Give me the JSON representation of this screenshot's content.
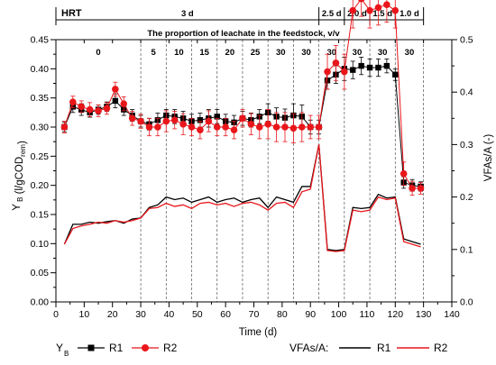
{
  "chart_data": {
    "type": "scatter",
    "title": "The proportion of leachate in the feedstock, v/v",
    "xlabel": "Time (d)",
    "ylabel_left": "Y_B (l/gCOD_rem)",
    "ylabel_left_parts": {
      "y": "Y",
      "sub": "B",
      "mid": "(l/gCOD",
      "sub2": "rem",
      "end": ")"
    },
    "ylabel_right": "VFAs/A (-)",
    "xlim": [
      0,
      140
    ],
    "ylim_left": [
      0.0,
      0.45
    ],
    "ylim_right": [
      0.0,
      0.5
    ],
    "x_ticks": [
      "0",
      "10",
      "20",
      "30",
      "40",
      "50",
      "60",
      "70",
      "80",
      "90",
      "100",
      "110",
      "120",
      "130",
      "140"
    ],
    "y_ticks_left": [
      "0.00",
      "0.05",
      "0.10",
      "0.15",
      "0.20",
      "0.25",
      "0.30",
      "0.35",
      "0.40",
      "0.45"
    ],
    "y_ticks_right": [
      "0.0",
      "0.1",
      "0.2",
      "0.3",
      "0.4",
      "0.5"
    ],
    "hrt": {
      "label": "HRT",
      "boundaries": [
        0,
        93,
        102,
        111,
        120,
        130
      ],
      "segments": [
        {
          "label": "3 d",
          "x": 46.5
        },
        {
          "label": "2.5 d",
          "x": 97.5
        },
        {
          "label": "2.0 d",
          "x": 106.5
        },
        {
          "label": "1.5 d",
          "x": 115.5
        },
        {
          "label": "1.0 d",
          "x": 125
        }
      ]
    },
    "leachate_boundaries": [
      30,
      39,
      48,
      57,
      66,
      75,
      84,
      93,
      102,
      111,
      120,
      130
    ],
    "leachate_labels": [
      {
        "label": "0",
        "x": 15
      },
      {
        "label": "5",
        "x": 34.5
      },
      {
        "label": "10",
        "x": 43.5
      },
      {
        "label": "15",
        "x": 52.5
      },
      {
        "label": "20",
        "x": 61.5
      },
      {
        "label": "25",
        "x": 70.5
      },
      {
        "label": "30",
        "x": 79.5
      },
      {
        "label": "30",
        "x": 88.5
      },
      {
        "label": "30",
        "x": 97.5
      },
      {
        "label": "30",
        "x": 106.5
      },
      {
        "label": "30",
        "x": 115.5
      },
      {
        "label": "30",
        "x": 125
      }
    ],
    "yb_series": [
      {
        "name": "R1",
        "color": "#000000",
        "marker": "square",
        "x": [
          3,
          6,
          9,
          12,
          15,
          18,
          21,
          24,
          27,
          30,
          33,
          36,
          39,
          42,
          45,
          48,
          51,
          54,
          57,
          60,
          63,
          66,
          69,
          72,
          75,
          78,
          81,
          84,
          87,
          90,
          93,
          96,
          99,
          102,
          105,
          108,
          111,
          114,
          117,
          120,
          123,
          126,
          129
        ],
        "y": [
          0.3,
          0.335,
          0.33,
          0.325,
          0.33,
          0.335,
          0.345,
          0.33,
          0.32,
          0.31,
          0.305,
          0.312,
          0.32,
          0.318,
          0.315,
          0.31,
          0.312,
          0.315,
          0.318,
          0.31,
          0.308,
          0.315,
          0.312,
          0.318,
          0.325,
          0.318,
          0.316,
          0.32,
          0.318,
          0.3,
          0.3,
          0.38,
          0.39,
          0.4,
          0.398,
          0.405,
          0.402,
          0.402,
          0.405,
          0.39,
          0.205,
          0.2,
          0.198
        ],
        "err": [
          0.008,
          0.01,
          0.01,
          0.008,
          0.008,
          0.008,
          0.012,
          0.01,
          0.01,
          0.01,
          0.01,
          0.012,
          0.01,
          0.012,
          0.012,
          0.012,
          0.012,
          0.015,
          0.012,
          0.012,
          0.012,
          0.012,
          0.012,
          0.012,
          0.015,
          0.015,
          0.015,
          0.02,
          0.02,
          0.012,
          0.012,
          0.015,
          0.015,
          0.02,
          0.015,
          0.015,
          0.015,
          0.015,
          0.012,
          0.01,
          0.01,
          0.01,
          0.008
        ]
      },
      {
        "name": "R2",
        "color": "#e8161b",
        "marker": "circle",
        "x": [
          3,
          6,
          9,
          12,
          15,
          18,
          21,
          24,
          27,
          30,
          33,
          36,
          39,
          42,
          45,
          48,
          51,
          54,
          57,
          60,
          63,
          66,
          69,
          72,
          75,
          78,
          81,
          84,
          87,
          90,
          93,
          96,
          99,
          102,
          105,
          108,
          111,
          114,
          117,
          120,
          123,
          126,
          129
        ],
        "y": [
          0.3,
          0.343,
          0.335,
          0.33,
          0.328,
          0.332,
          0.365,
          0.34,
          0.315,
          0.31,
          0.3,
          0.3,
          0.31,
          0.312,
          0.305,
          0.3,
          0.295,
          0.31,
          0.3,
          0.3,
          0.295,
          0.315,
          0.305,
          0.3,
          0.305,
          0.3,
          0.3,
          0.298,
          0.3,
          0.3,
          0.3,
          0.395,
          0.41,
          0.395,
          0.5,
          0.52,
          0.5,
          0.505,
          0.51,
          0.5,
          0.22,
          0.195,
          0.195
        ],
        "err": [
          0.01,
          0.01,
          0.01,
          0.012,
          0.01,
          0.01,
          0.012,
          0.012,
          0.012,
          0.012,
          0.015,
          0.015,
          0.018,
          0.015,
          0.018,
          0.015,
          0.015,
          0.018,
          0.015,
          0.015,
          0.015,
          0.015,
          0.018,
          0.02,
          0.025,
          0.025,
          0.025,
          0.025,
          0.025,
          0.02,
          0.02,
          0.03,
          0.03,
          0.03,
          0.03,
          0.03,
          0.03,
          0.03,
          0.03,
          0.03,
          0.02,
          0.012,
          0.01
        ]
      }
    ],
    "vfa_series": [
      {
        "name": "R1",
        "color": "#000000",
        "x": [
          3,
          6,
          9,
          12,
          15,
          18,
          21,
          24,
          27,
          30,
          33,
          36,
          39,
          42,
          45,
          48,
          51,
          54,
          57,
          60,
          63,
          66,
          69,
          72,
          75,
          78,
          81,
          84,
          87,
          90,
          93,
          96,
          99,
          102,
          105,
          108,
          111,
          114,
          117,
          120,
          123,
          126,
          129
        ],
        "y": [
          0.11,
          0.148,
          0.148,
          0.152,
          0.15,
          0.153,
          0.155,
          0.15,
          0.158,
          0.16,
          0.18,
          0.185,
          0.2,
          0.195,
          0.198,
          0.19,
          0.195,
          0.2,
          0.19,
          0.195,
          0.198,
          0.19,
          0.195,
          0.198,
          0.18,
          0.2,
          0.195,
          0.19,
          0.22,
          0.22,
          0.3,
          0.1,
          0.098,
          0.1,
          0.18,
          0.178,
          0.18,
          0.205,
          0.198,
          0.2,
          0.12,
          0.115,
          0.11
        ]
      },
      {
        "name": "R2",
        "color": "#e8161b",
        "x": [
          3,
          6,
          9,
          12,
          15,
          18,
          21,
          24,
          27,
          30,
          33,
          36,
          39,
          42,
          45,
          48,
          51,
          54,
          57,
          60,
          63,
          66,
          69,
          72,
          75,
          78,
          81,
          84,
          87,
          90,
          93,
          96,
          99,
          102,
          105,
          108,
          111,
          114,
          117,
          120,
          123,
          126,
          129
        ],
        "y": [
          0.11,
          0.14,
          0.145,
          0.148,
          0.152,
          0.15,
          0.155,
          0.152,
          0.155,
          0.16,
          0.178,
          0.18,
          0.188,
          0.182,
          0.185,
          0.178,
          0.188,
          0.19,
          0.185,
          0.188,
          0.182,
          0.188,
          0.19,
          0.185,
          0.175,
          0.188,
          0.19,
          0.18,
          0.21,
          0.215,
          0.3,
          0.098,
          0.096,
          0.098,
          0.175,
          0.172,
          0.175,
          0.2,
          0.195,
          0.198,
          0.115,
          0.11,
          0.105
        ]
      }
    ],
    "legend": {
      "yb_prefix": "Y",
      "yb_sub": "B",
      "vfa_prefix": "VFAs/A:",
      "r1": "R1",
      "r2": "R2"
    }
  }
}
